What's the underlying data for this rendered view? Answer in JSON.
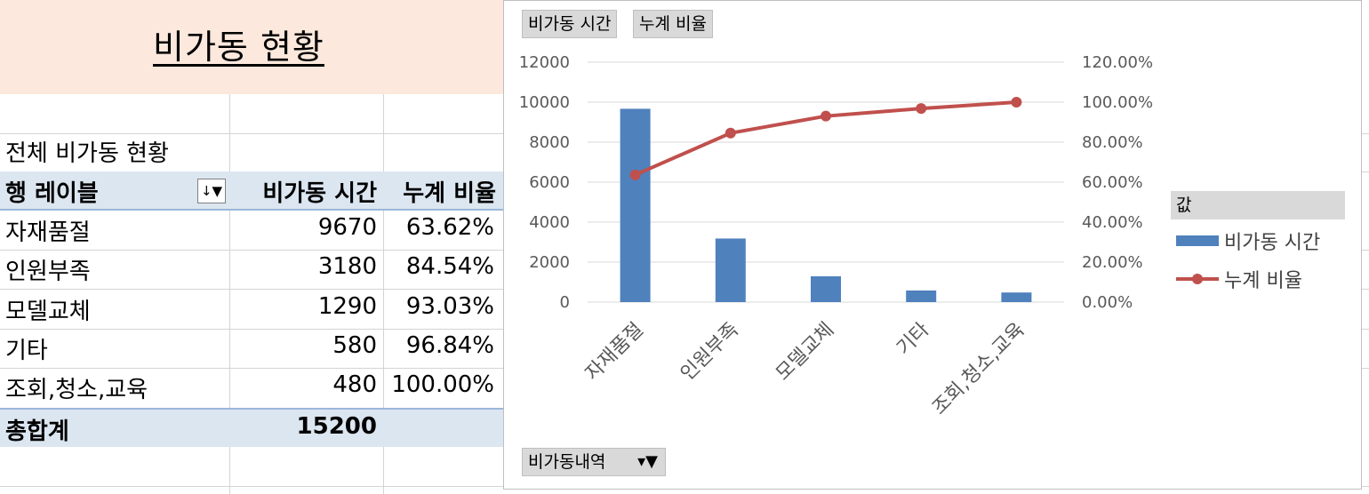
{
  "sheet": {
    "title": "비가동 현황",
    "pivot_caption": "전체 비가동 현황"
  },
  "pivot": {
    "row_label_header": "행 레이블",
    "filter_icon": "filter-sort-icon",
    "col_headers": [
      "비가동 시간",
      "누계 비율"
    ],
    "rows": [
      {
        "label": "자재품절",
        "time": "9670",
        "cum": "63.62%"
      },
      {
        "label": "인원부족",
        "time": "3180",
        "cum": "84.54%"
      },
      {
        "label": "모델교체",
        "time": "1290",
        "cum": "93.03%"
      },
      {
        "label": "기타",
        "time": "580",
        "cum": "96.84%"
      },
      {
        "label": "조회,청소,교육",
        "time": "480",
        "cum": "100.00%"
      }
    ],
    "total_label": "총합계",
    "total_time": "15200"
  },
  "chart": {
    "field_buttons": [
      "비가동 시간",
      "누계 비율"
    ],
    "axis_field_button": "비가동내역",
    "legend_header": "값",
    "legend_items": [
      "비가동 시간",
      "누계 비율"
    ]
  },
  "chart_data": {
    "type": "bar",
    "categories": [
      "자재품절",
      "인원부족",
      "모델교체",
      "기타",
      "조회,청소,교육"
    ],
    "series": [
      {
        "name": "비가동 시간",
        "type": "bar",
        "axis": "left",
        "color": "#4f81bd",
        "values": [
          9670,
          3180,
          1290,
          580,
          480
        ]
      },
      {
        "name": "누계 비율",
        "type": "line",
        "axis": "right",
        "color": "#c0504d",
        "values": [
          63.62,
          84.54,
          93.03,
          96.84,
          100.0
        ]
      }
    ],
    "y_left": {
      "min": 0,
      "max": 12000,
      "ticks": [
        "0",
        "2000",
        "4000",
        "6000",
        "8000",
        "10000",
        "12000"
      ]
    },
    "y_right": {
      "min": 0,
      "max": 120,
      "ticks": [
        "0.00%",
        "20.00%",
        "40.00%",
        "60.00%",
        "80.00%",
        "100.00%",
        "120.00%"
      ]
    },
    "grid": true,
    "legend_position": "right"
  }
}
